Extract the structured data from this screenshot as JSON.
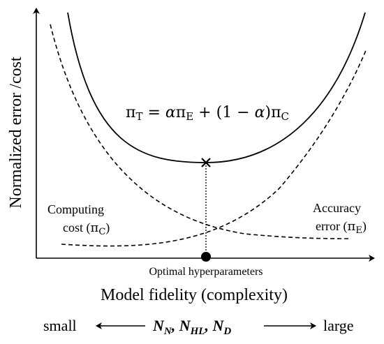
{
  "axes": {
    "y_label": "Normalized error /cost",
    "x_label": "Model fidelity (complexity)",
    "x_point_label": "Optimal hyperparameters"
  },
  "equation": {
    "lhs_var": "π",
    "lhs_sub": "T",
    "eq": " = ",
    "alpha": "α",
    "pi_e": "π",
    "sub_e": "E",
    "plus": " + (1 − ",
    "alpha2": "α",
    "close": ")",
    "pi_c": "π",
    "sub_c": "C"
  },
  "curves": {
    "computing_line1": "Computing",
    "computing_line2": "cost (",
    "computing_var": "π",
    "computing_sub": "C",
    "computing_close": ")",
    "accuracy_line1": "Accuracy",
    "accuracy_line2": "error (",
    "accuracy_var": "π",
    "accuracy_sub": "E",
    "accuracy_close": ")"
  },
  "scale": {
    "left": "small",
    "right": "large",
    "v1": "N",
    "s1": "N",
    "sep1": ", ",
    "v2": "N",
    "s2": "HL",
    "sep2": ", ",
    "v3": "N",
    "s3": "D"
  }
}
